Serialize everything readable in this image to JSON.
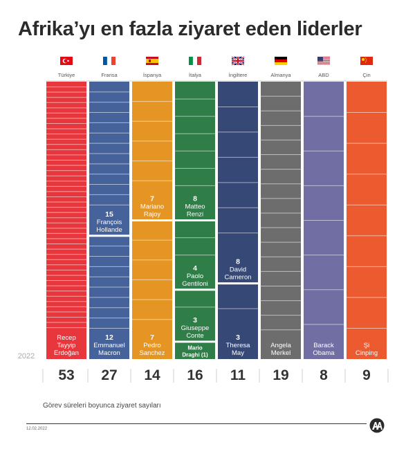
{
  "title": "Afrika’yı en fazla ziyaret eden liderler",
  "year_label": "2022",
  "caption": "Görev süreleri boyunca ziyaret sayıları",
  "date": "12.02.2022",
  "chart_data": {
    "type": "bar",
    "title": "Afrika’yı en fazla ziyaret eden liderler",
    "subtitle": "Görev süreleri boyunca ziyaret sayıları",
    "categories": [
      "Türkiye",
      "Fransa",
      "İspanya",
      "İtalya",
      "İngiltere",
      "Almanya",
      "ABD",
      "Çin"
    ],
    "values": [
      53,
      27,
      14,
      16,
      11,
      19,
      8,
      9
    ],
    "countries": [
      {
        "name": "Türkiye",
        "flag": "turkey-flag",
        "color": "#e8363d",
        "total": 53,
        "leaders": [
          {
            "name": [
              "Recep",
              "Tayyip",
              "Erdoğan"
            ],
            "visits": 53,
            "show_count": false
          }
        ]
      },
      {
        "name": "Fransa",
        "flag": "france-flag",
        "color": "#46629a",
        "total": 27,
        "leaders": [
          {
            "name": [
              "François",
              "Hollande"
            ],
            "visits": 15,
            "show_count": true
          },
          {
            "name": [
              "Emmanuel",
              "Macron"
            ],
            "visits": 12,
            "show_count": true
          }
        ]
      },
      {
        "name": "İspanya",
        "flag": "spain-flag",
        "color": "#e59523",
        "total": 14,
        "leaders": [
          {
            "name": [
              "Mariano",
              "Rajoy"
            ],
            "visits": 7,
            "show_count": true
          },
          {
            "name": [
              "Pedro",
              "Sanchez"
            ],
            "visits": 7,
            "show_count": true
          }
        ]
      },
      {
        "name": "İtalya",
        "flag": "italy-flag",
        "color": "#2f7d47",
        "total": 16,
        "leaders": [
          {
            "name": [
              "Matteo",
              "Renzi"
            ],
            "visits": 8,
            "show_count": true
          },
          {
            "name": [
              "Paolo",
              "Gentiloni"
            ],
            "visits": 4,
            "show_count": true
          },
          {
            "name": [
              "Giuseppe",
              "Conte"
            ],
            "visits": 3,
            "show_count": true
          },
          {
            "name": [
              "Mario",
              "Draghi (1)"
            ],
            "visits": 1,
            "show_count": false
          }
        ]
      },
      {
        "name": "İngiltere",
        "flag": "uk-flag",
        "color": "#354876",
        "total": 11,
        "leaders": [
          {
            "name": [
              "David",
              "Cameron"
            ],
            "visits": 8,
            "show_count": true
          },
          {
            "name": [
              "Theresa",
              "May"
            ],
            "visits": 3,
            "show_count": true
          }
        ]
      },
      {
        "name": "Almanya",
        "flag": "germany-flag",
        "color": "#6d6d6d",
        "total": 19,
        "leaders": [
          {
            "name": [
              "Angela",
              "Merkel"
            ],
            "visits": 19,
            "show_count": false
          }
        ]
      },
      {
        "name": "ABD",
        "flag": "usa-flag",
        "color": "#706ea3",
        "total": 8,
        "leaders": [
          {
            "name": [
              "Barack",
              "Obama"
            ],
            "visits": 8,
            "show_count": false
          }
        ]
      },
      {
        "name": "Çin",
        "flag": "china-flag",
        "color": "#ec5a30",
        "total": 9,
        "leaders": [
          {
            "name": [
              "Şi",
              "Cinping"
            ],
            "visits": 9,
            "show_count": false
          }
        ]
      }
    ]
  }
}
